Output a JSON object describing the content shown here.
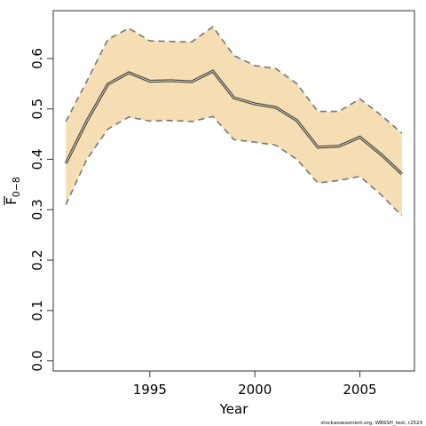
{
  "chart_data": {
    "type": "line",
    "xlabel": "Year",
    "ylabel": "F",
    "ylabel_sub": "0−8",
    "xlim": [
      1990.4,
      2007.6
    ],
    "ylim": [
      -0.02,
      0.695
    ],
    "x_ticks": [
      {
        "value": 1995,
        "label": "1995"
      },
      {
        "value": 2000,
        "label": "2000"
      },
      {
        "value": 2005,
        "label": "2005"
      }
    ],
    "y_ticks": [
      {
        "value": 0.0,
        "label": "0.0"
      },
      {
        "value": 0.1,
        "label": "0.1"
      },
      {
        "value": 0.2,
        "label": "0.2"
      },
      {
        "value": 0.3,
        "label": "0.3"
      },
      {
        "value": 0.4,
        "label": "0.4"
      },
      {
        "value": 0.5,
        "label": "0.5"
      },
      {
        "value": 0.6,
        "label": "0.6"
      }
    ],
    "x": [
      1991,
      1992,
      1993,
      1994,
      1995,
      1996,
      1997,
      1998,
      1999,
      2000,
      2001,
      2002,
      2003,
      2004,
      2005,
      2006,
      2007
    ],
    "series": [
      {
        "role": "estimate",
        "values": [
          0.392,
          0.476,
          0.549,
          0.572,
          0.555,
          0.556,
          0.554,
          0.575,
          0.522,
          0.51,
          0.503,
          0.477,
          0.424,
          0.426,
          0.444,
          0.41,
          0.371
        ]
      },
      {
        "role": "upper",
        "values": [
          0.475,
          0.555,
          0.638,
          0.66,
          0.635,
          0.634,
          0.633,
          0.663,
          0.606,
          0.586,
          0.58,
          0.55,
          0.495,
          0.495,
          0.52,
          0.488,
          0.452
        ]
      },
      {
        "role": "lower",
        "values": [
          0.31,
          0.4,
          0.46,
          0.484,
          0.476,
          0.477,
          0.475,
          0.485,
          0.439,
          0.434,
          0.428,
          0.4,
          0.353,
          0.358,
          0.366,
          0.33,
          0.288
        ]
      }
    ],
    "grid": false,
    "colors": {
      "band": "#f5deb3",
      "estimate_line": "#444444",
      "ci_line": "#777777",
      "axis": "#333333"
    }
  },
  "footer": {
    "credit": "stockassessment.org, WBSSH_test, r2523"
  }
}
